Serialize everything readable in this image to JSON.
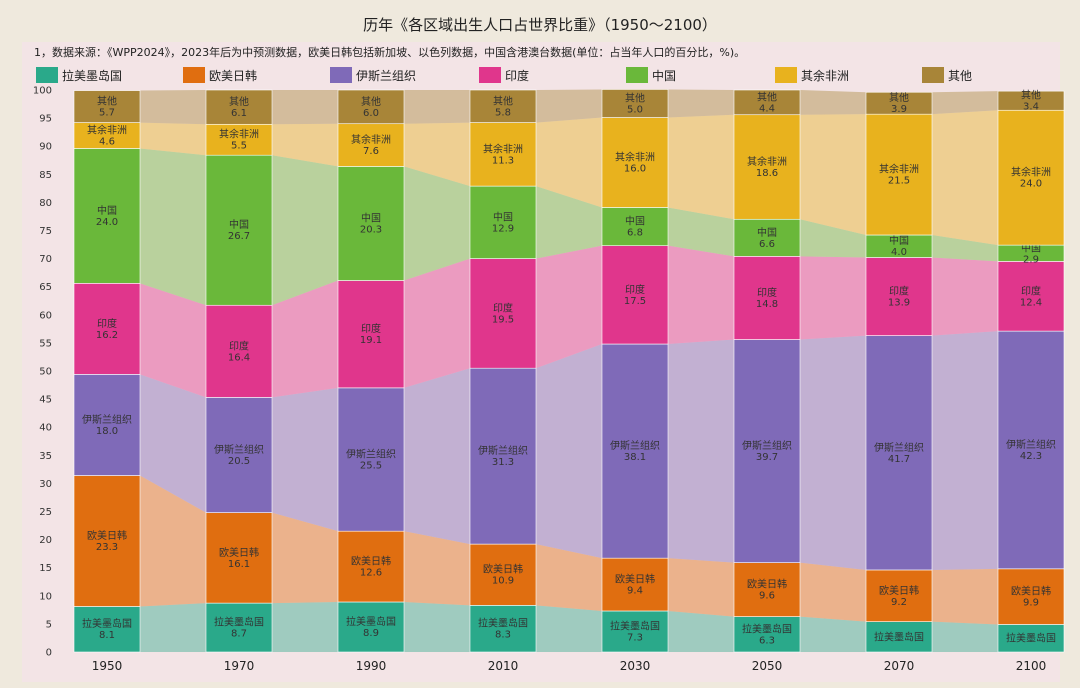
{
  "chart_data": {
    "type": "bar",
    "stacked": true,
    "title": "历年《各区域出生人口占世界比重》（1950～2100）",
    "subtitle": "1，数据来源：《WPP2024》，2023年后为中预测数据，欧美日韩包括新加坡、以色列数据，中国含港澳台数据(单位：占当年人口的百分比，%)。",
    "categories": [
      "1950",
      "1970",
      "1990",
      "2010",
      "2030",
      "2050",
      "2070",
      "2100"
    ],
    "ylim": [
      0,
      100
    ],
    "yticks": [
      0,
      5,
      10,
      15,
      20,
      25,
      30,
      35,
      40,
      45,
      50,
      55,
      60,
      65,
      70,
      75,
      80,
      85,
      90,
      95,
      100
    ],
    "legend_position": "top",
    "series": [
      {
        "name": "拉美墨岛国",
        "color": "#2aa98a",
        "values": [
          8.1,
          8.7,
          8.9,
          8.3,
          7.3,
          6.3,
          5.4,
          4.9
        ]
      },
      {
        "name": "欧美日韩",
        "color": "#e06e10",
        "values": [
          23.3,
          16.1,
          12.6,
          10.9,
          9.4,
          9.6,
          9.2,
          9.9
        ]
      },
      {
        "name": "伊斯兰组织",
        "color": "#7f6ab8",
        "values": [
          18.0,
          20.5,
          25.5,
          31.3,
          38.1,
          39.7,
          41.7,
          42.3
        ]
      },
      {
        "name": "印度",
        "color": "#e0368c",
        "values": [
          16.2,
          16.4,
          19.1,
          19.5,
          17.5,
          14.8,
          13.9,
          12.4
        ]
      },
      {
        "name": "中国",
        "color": "#6ab83a",
        "values": [
          24.0,
          26.7,
          20.3,
          12.9,
          6.8,
          6.6,
          4.0,
          2.9
        ]
      },
      {
        "name": "其余非洲",
        "color": "#e8b21e",
        "values": [
          4.6,
          5.5,
          7.6,
          11.3,
          16.0,
          18.6,
          21.5,
          24.0
        ]
      },
      {
        "name": "其他",
        "color": "#a88538",
        "values": [
          5.7,
          6.1,
          6.0,
          5.8,
          5.0,
          4.4,
          3.9,
          3.4
        ]
      }
    ],
    "segment_labels": [
      [
        "拉美墨岛国\n8.1",
        "拉美墨岛国\n8.7",
        "拉美墨岛国\n8.9",
        "拉美墨岛国\n8.3",
        "拉美墨岛国\n7.3",
        "拉美墨岛国\n6.3",
        "拉美墨岛国",
        "拉美墨岛国"
      ],
      [
        "欧美日韩\n23.3",
        "欧美日韩\n16.1",
        "欧美日韩\n12.6",
        "欧美日韩\n10.9",
        "欧美日韩\n9.4",
        "欧美日韩\n9.6",
        "欧美日韩\n9.2",
        "欧美日韩\n9.9"
      ],
      [
        "伊斯兰组织\n18.0",
        "伊斯兰组织\n20.5",
        "伊斯兰组织\n25.5",
        "伊斯兰组织\n31.3",
        "伊斯兰组织\n38.1",
        "伊斯兰组织\n39.7",
        "伊斯兰组织\n41.7",
        "伊斯兰组织\n42.3"
      ],
      [
        "印度\n16.2",
        "印度\n16.4",
        "印度\n19.1",
        "印度\n19.5",
        "印度\n17.5",
        "印度\n14.8",
        "印度\n13.9",
        "印度\n12.4"
      ],
      [
        "中国\n24.0",
        "中国\n26.7",
        "中国\n20.3",
        "中国\n12.9",
        "中国\n6.8",
        "中国\n6.6",
        "中国\n4.0",
        "中国\n2.9"
      ],
      [
        "其余非洲\n4.6",
        "其余非洲\n5.5",
        "其余非洲\n7.6",
        "其余非洲\n11.3",
        "其余非洲\n16.0",
        "其余非洲\n18.6",
        "其余非洲\n21.5",
        "其余非洲\n24.0"
      ],
      [
        "其他\n5.7",
        "其他\n6.1",
        "其他\n6.0",
        "其他\n5.8",
        "其他\n5.0",
        "其他\n4.4",
        "其他\n3.9",
        "其他\n3.4"
      ]
    ]
  }
}
